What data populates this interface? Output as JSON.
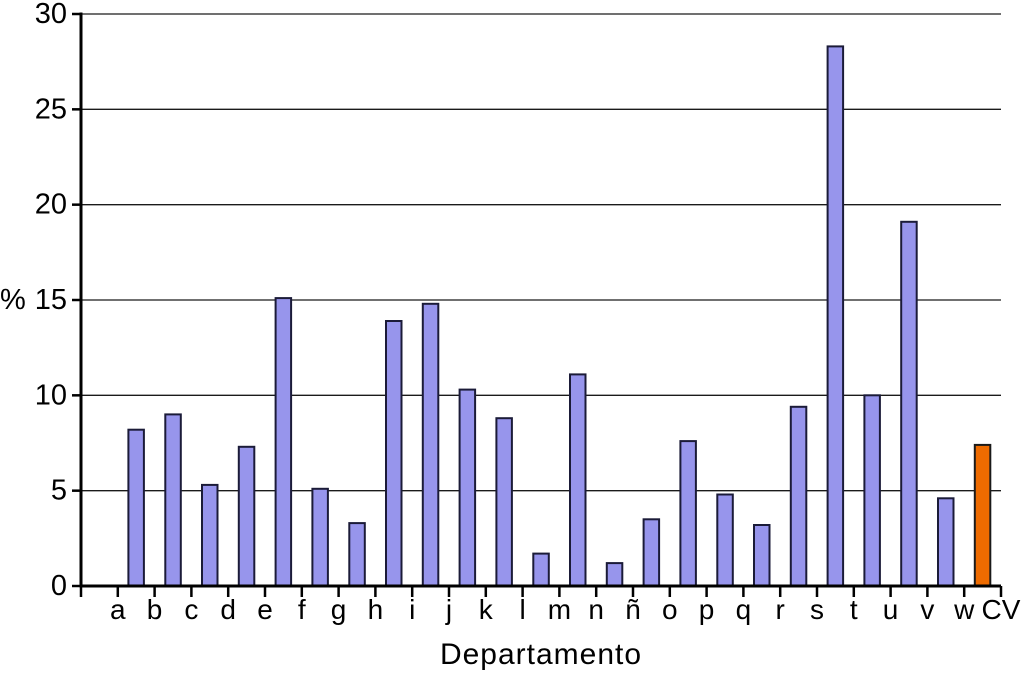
{
  "figure": {
    "xlabel": "Departamento",
    "ylabel": "%"
  },
  "chart_data": {
    "type": "bar",
    "title": "",
    "xlabel": "Departamento",
    "ylabel": "%",
    "ylim": [
      0,
      30
    ],
    "yticks": [
      0,
      5,
      10,
      15,
      20,
      25,
      30
    ],
    "grid": "horizontal gridlines at each y tick, no right or top border",
    "legend": "none",
    "categories": [
      "a",
      "b",
      "c",
      "d",
      "e",
      "f",
      "g",
      "h",
      "i",
      "j",
      "k",
      "l",
      "m",
      "n",
      "ñ",
      "o",
      "p",
      "q",
      "r",
      "s",
      "t",
      "u",
      "v",
      "w",
      "CV"
    ],
    "values": [
      8.2,
      9.0,
      5.3,
      7.3,
      15.1,
      5.1,
      3.3,
      13.9,
      14.8,
      10.3,
      8.8,
      1.7,
      11.1,
      1.2,
      3.5,
      7.6,
      4.8,
      3.2,
      9.4,
      28.3,
      10.0,
      19.1,
      4.6,
      7.4
    ],
    "highlight": {
      "label": "CV",
      "value": 7.4,
      "color": "#ee6b00",
      "border": "#1a1a1a"
    },
    "bar_color": "#9795ec",
    "bar_border_color": "#1b1b38",
    "axis_color": "#000000",
    "gridline_color": "#1a1a1a",
    "layout_note": "25 tick labels on x axis; 24 bars drawn centered between consecutive ticks; slot before first tick is empty; last bar (CV) is orange"
  }
}
